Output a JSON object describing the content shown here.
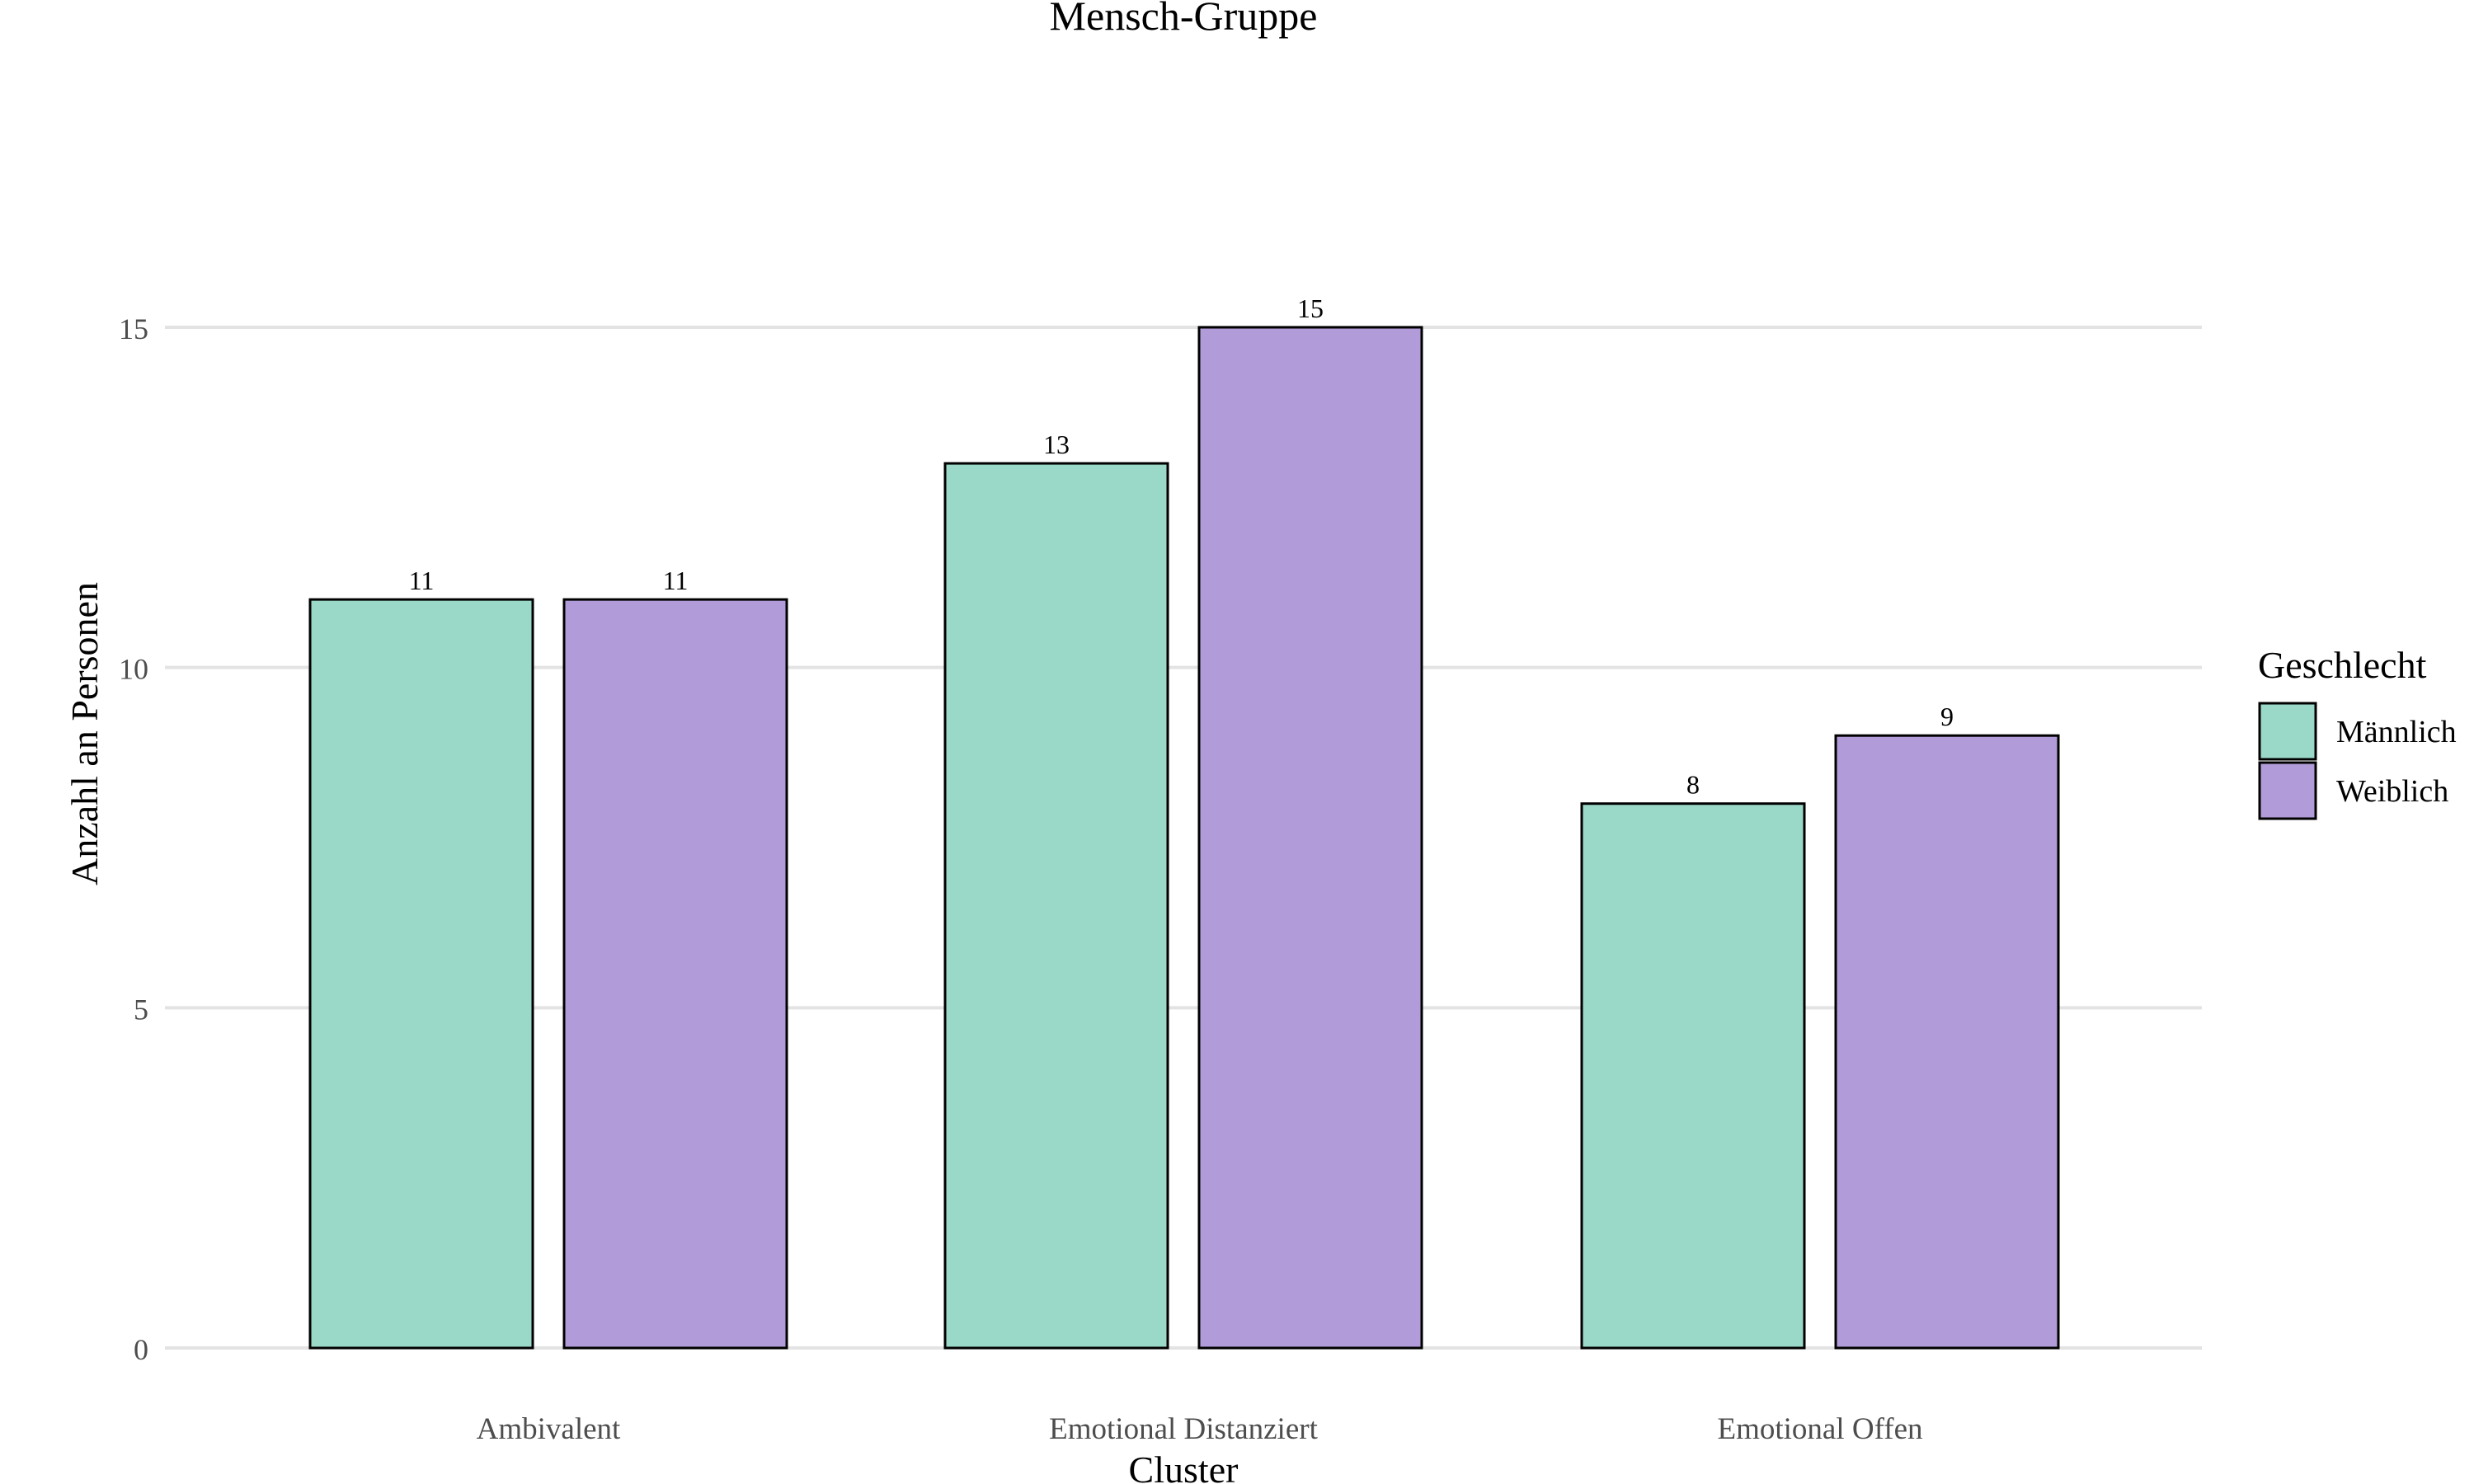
{
  "chart_data": {
    "type": "bar",
    "title": "Mensch-Gruppe",
    "xlabel": "Cluster",
    "ylabel": "Anzahl an Personen",
    "categories": [
      "Ambivalent",
      "Emotional Distanziert",
      "Emotional Offen"
    ],
    "series": [
      {
        "name": "Männlich",
        "values": [
          11,
          13,
          8
        ],
        "color": "#9AD9C8"
      },
      {
        "name": "Weiblich",
        "values": [
          11,
          15,
          9
        ],
        "color": "#B19CD9"
      }
    ],
    "ylim": [
      0,
      15
    ],
    "yticks": [
      0,
      5,
      10,
      15
    ],
    "grid": true,
    "data_labels": true,
    "legend": {
      "title": "Geschlecht",
      "position": "right"
    }
  }
}
